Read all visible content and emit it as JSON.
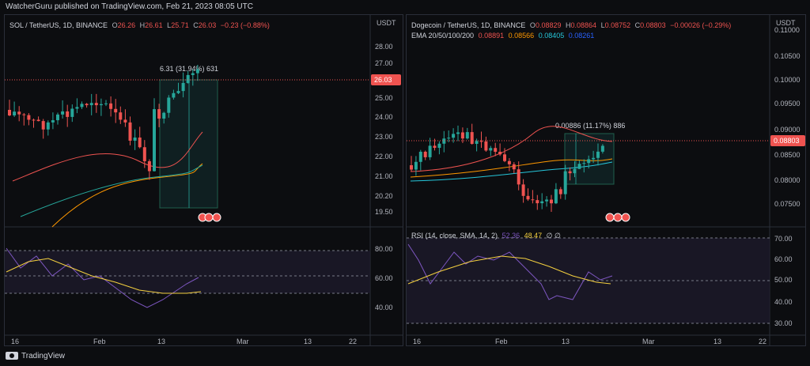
{
  "header": {
    "text": "WatcherGuru published on TradingView.com, Feb 21, 2023 08:05 UTC"
  },
  "footer": {
    "brand": "TradingView"
  },
  "colors": {
    "up": "#26a69a",
    "down": "#ef5350",
    "ema20": "#ef5350",
    "ema50": "#ff9800",
    "ema100": "#26c6da",
    "ema200": "#2962ff",
    "rsi": "#7e57c2",
    "rsi_ma": "#f4d03f"
  },
  "charts": [
    {
      "symbol": "SOL / TetherUS, 1D, BINANCE",
      "ohlc": {
        "o_label": "O",
        "o": "26.26",
        "h_label": "H",
        "h": "26.61",
        "l_label": "L",
        "l": "25.71",
        "c_label": "C",
        "c": "26.03",
        "chg": "−0.23 (−0.88%)"
      },
      "currency": "USDT",
      "price_ticks": [
        "28.00",
        "27.00",
        "25.00",
        "24.00",
        "23.00",
        "22.00",
        "21.00",
        "20.20",
        "19.50"
      ],
      "last_price": "26.03",
      "measure_label": "6.31 (31.94%) 631",
      "rsi_ticks": [
        "80.00",
        "60.00",
        "40.00"
      ],
      "time_ticks": [
        "16",
        "Feb",
        "13",
        "Mar",
        "13",
        "22"
      ]
    },
    {
      "symbol": "Dogecoin / TetherUS, 1D, BINANCE",
      "ohlc": {
        "o_label": "O",
        "o": "0.08829",
        "h_label": "H",
        "h": "0.08864",
        "l_label": "L",
        "l": "0.08752",
        "c_label": "C",
        "c": "0.08803",
        "chg": "−0.00026 (−0.29%)"
      },
      "currency": "USDT",
      "ema": {
        "label": "EMA 20/50/100/200",
        "v1": "0.08891",
        "v2": "0.08566",
        "v3": "0.08405",
        "v4": "0.08261"
      },
      "price_ticks": [
        "0.11000",
        "0.10500",
        "0.10000",
        "0.09500",
        "0.09000",
        "0.08500",
        "0.08000",
        "0.07500"
      ],
      "last_price": "0.08803",
      "measure_label": "0.00886 (11.17%) 886",
      "rsi": {
        "label": "RSI (14, close, SMA, 14, 2)",
        "v1": "52.36",
        "v2": "48.47",
        "extra": "∅ ∅"
      },
      "rsi_ticks": [
        "70.00",
        "60.00",
        "50.00",
        "40.00",
        "30.00"
      ],
      "time_ticks": [
        "16",
        "Feb",
        "13",
        "Mar",
        "13",
        "22"
      ]
    }
  ]
}
